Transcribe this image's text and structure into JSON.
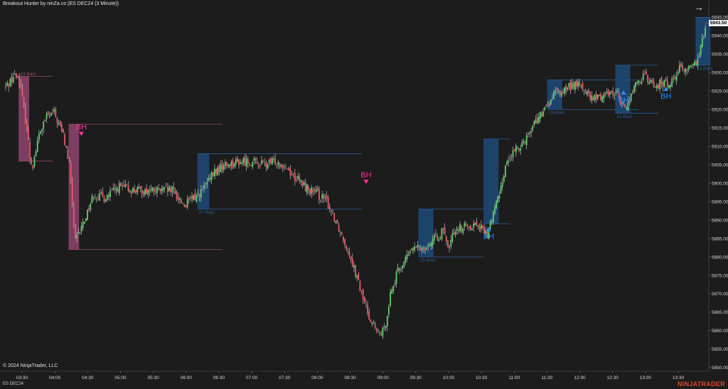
{
  "header": {
    "title": "Breakout Hunter by ninZa.co (ES DEC24 (3 Minute))",
    "arrow_icon": "arrow-right-icon"
  },
  "footer": {
    "copyright": "© 2024 NinjaTrader, LLC",
    "instrument": "ES DEC24",
    "brand": "NINJATRADER"
  },
  "colors": {
    "background": "#1c1c1c",
    "up_candle": "#5fd06b",
    "down_candle": "#e85a66",
    "bear_zone": "#9e4a78",
    "bull_zone": "#1f4a78",
    "bear_signal": "#ff2e9a",
    "bull_signal": "#2a8cff"
  },
  "current_price": "5943.50",
  "chart_data": {
    "type": "candlestick",
    "y_ticks": [
      "5945.00",
      "5940.00",
      "5935.00",
      "5930.00",
      "5925.00",
      "5920.00",
      "5915.00",
      "5910.00",
      "5905.00",
      "5900.00",
      "5895.00",
      "5890.00",
      "5885.00",
      "5880.00",
      "5875.00",
      "5870.00",
      "5865.00",
      "5860.00",
      "5855.00",
      "5850.00"
    ],
    "x_ticks": [
      "03:30",
      "04:00",
      "04:30",
      "05:00",
      "05:30",
      "06:00",
      "06:30",
      "07:00",
      "07:30",
      "08:00",
      "08:30",
      "09:00",
      "09:30",
      "10:00",
      "10:30",
      "11:00",
      "11:30",
      "12:00",
      "12:30",
      "13:00",
      "13:30"
    ],
    "ylim": [
      5849,
      5947
    ],
    "close_path": [
      [
        0,
        5926
      ],
      [
        5,
        5929
      ],
      [
        8,
        5929
      ],
      [
        9,
        5928
      ],
      [
        14,
        5915
      ],
      [
        16,
        5907
      ],
      [
        18,
        5905
      ],
      [
        22,
        5913
      ],
      [
        27,
        5918
      ],
      [
        32,
        5919
      ],
      [
        35,
        5916
      ],
      [
        38,
        5913
      ],
      [
        42,
        5905
      ],
      [
        46,
        5884
      ],
      [
        49,
        5887
      ],
      [
        52,
        5890
      ],
      [
        58,
        5897
      ],
      [
        65,
        5896
      ],
      [
        75,
        5899
      ],
      [
        85,
        5898
      ],
      [
        100,
        5898
      ],
      [
        110,
        5898
      ],
      [
        118,
        5894
      ],
      [
        130,
        5898
      ],
      [
        138,
        5903
      ],
      [
        145,
        5905
      ],
      [
        158,
        5906
      ],
      [
        172,
        5905
      ],
      [
        178,
        5906
      ],
      [
        184,
        5905
      ],
      [
        190,
        5902
      ],
      [
        198,
        5899
      ],
      [
        201,
        5898
      ],
      [
        206,
        5897
      ],
      [
        212,
        5895
      ],
      [
        218,
        5890
      ],
      [
        222,
        5886
      ],
      [
        228,
        5880
      ],
      [
        235,
        5870
      ],
      [
        240,
        5864
      ],
      [
        246,
        5859
      ],
      [
        250,
        5860
      ],
      [
        254,
        5870
      ],
      [
        259,
        5876
      ],
      [
        268,
        5882
      ],
      [
        278,
        5883
      ],
      [
        289,
        5887
      ],
      [
        292,
        5882
      ],
      [
        297,
        5888
      ],
      [
        302,
        5888
      ],
      [
        311,
        5889
      ],
      [
        318,
        5886
      ],
      [
        325,
        5896
      ],
      [
        331,
        5906
      ],
      [
        343,
        5912
      ],
      [
        350,
        5917
      ],
      [
        355,
        5919
      ],
      [
        362,
        5924
      ],
      [
        368,
        5925
      ],
      [
        372,
        5926
      ],
      [
        376,
        5927
      ],
      [
        381,
        5926
      ],
      [
        386,
        5923
      ],
      [
        390,
        5923
      ],
      [
        400,
        5925
      ],
      [
        404,
        5924
      ],
      [
        409,
        5920
      ],
      [
        414,
        5925
      ],
      [
        418,
        5928
      ],
      [
        422,
        5929
      ],
      [
        429,
        5926
      ],
      [
        431,
        5927
      ],
      [
        439,
        5927
      ],
      [
        444,
        5931
      ],
      [
        450,
        5931
      ],
      [
        454,
        5932
      ],
      [
        458,
        5935
      ],
      [
        462,
        5943
      ]
    ],
    "zones": [
      {
        "type": "bearish",
        "from_bar": 9,
        "to_bar": 15,
        "top": 5929,
        "bottom": 5906,
        "label": "13-Bars",
        "label_color": "#9a4a6c",
        "line_end": 31
      },
      {
        "type": "bearish",
        "from_bar": 42,
        "to_bar": 48,
        "top": 5916,
        "bottom": 5882,
        "label": "",
        "label_color": "#9a4a6c",
        "line_end": 143
      },
      {
        "type": "bullish",
        "from_bar": 127,
        "to_bar": 134,
        "top": 5908,
        "bottom": 5893,
        "label": "27-Bars",
        "label_color": "#2b5e96",
        "line_end": 235
      },
      {
        "type": "bullish",
        "from_bar": 273,
        "to_bar": 282,
        "top": 5893,
        "bottom": 5880,
        "label": "15-Bars",
        "label_color": "#2b5e96",
        "line_end": 316
      },
      {
        "type": "bullish",
        "from_bar": 316,
        "to_bar": 325,
        "top": 5912,
        "bottom": 5889,
        "label": "",
        "label_color": "#2b5e96",
        "line_end": 333
      },
      {
        "type": "bullish",
        "from_bar": 358,
        "to_bar": 367,
        "top": 5928,
        "bottom": 5920,
        "label": "19-Bars",
        "label_color": "#2b5e96",
        "line_end": 418
      },
      {
        "type": "bullish",
        "from_bar": 403,
        "to_bar": 412,
        "top": 5932,
        "bottom": 5919,
        "label": "11-Bars",
        "label_color": "#2b5e96",
        "line_end": 431
      },
      {
        "type": "bullish",
        "from_bar": 456,
        "to_bar": 465,
        "top": 5945,
        "bottom": 5932,
        "label": "11-Bars",
        "label_color": "#2b5e96",
        "line_end": 465
      }
    ],
    "signals": [
      {
        "type": "bearish",
        "bar": 50,
        "price": 5913,
        "label": "BH"
      },
      {
        "type": "bearish",
        "bar": 238,
        "price": 5900,
        "label": "BH"
      },
      {
        "type": "bullish",
        "bar": 319,
        "price": 5888,
        "label": "BH"
      },
      {
        "type": "bullish",
        "bar": 408,
        "price": 5925,
        "label": "BH"
      },
      {
        "type": "bullish",
        "bar": 436,
        "price": 5926,
        "label": "BH"
      }
    ]
  }
}
